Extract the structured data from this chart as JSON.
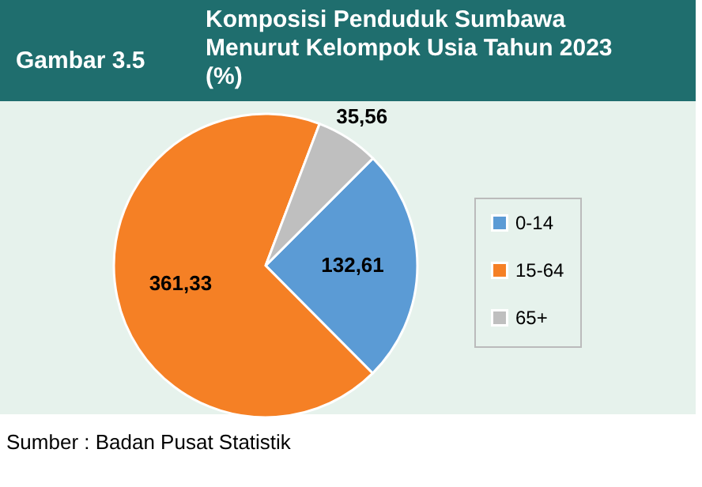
{
  "chart_data": {
    "type": "pie",
    "title": "Komposisi Penduduk Sumbawa Menurut Kelompok Usia Tahun 2023 (%)",
    "categories": [
      "0-14",
      "15-64",
      "65+"
    ],
    "values": [
      132.61,
      361.33,
      35.56
    ],
    "colors": [
      "#5b9bd5",
      "#f58025",
      "#bfbfbf"
    ],
    "value_labels": [
      "132,61",
      "361,33",
      "35,56"
    ],
    "legend": "right",
    "annotations": [
      "Gambar 3.5",
      "Sumber : Badan Pusat Statistik"
    ]
  }
}
